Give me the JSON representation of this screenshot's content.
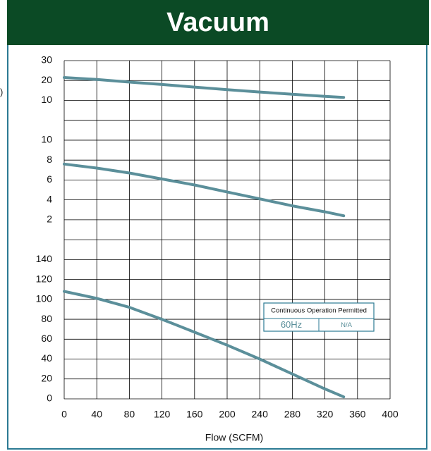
{
  "header": {
    "title": "Vacuum"
  },
  "clipped_label": ")",
  "colors": {
    "header_bg": "#0b4a25",
    "curve": "#5b8f9a",
    "frame": "#2b7a93",
    "grid": "#000000"
  },
  "info_box": {
    "title": "Continuous  Operation Permitted",
    "freq": "60Hz",
    "value": "N/A"
  },
  "chart_data": {
    "type": "line",
    "xlabel": "Flow (SCFM)",
    "xlim": [
      0,
      400
    ],
    "x_ticks": [
      0,
      40,
      80,
      120,
      160,
      200,
      240,
      280,
      320,
      360,
      400
    ],
    "grid": true,
    "panels": [
      {
        "name": "upper",
        "ylabel": "",
        "tick_labels": [
          "30",
          "20",
          "10"
        ],
        "series": [
          {
            "x": [
              0,
              40,
              80,
              120,
              160,
              200,
              240,
              280,
              320,
              343
            ],
            "y": [
              21.5,
              20.5,
              19.2,
              18.0,
              16.7,
              15.4,
              14.2,
              13.1,
              12.0,
              11.5
            ]
          }
        ]
      },
      {
        "name": "middle",
        "ylabel": "",
        "tick_labels": [
          "10",
          "8",
          "6",
          "4",
          "2"
        ],
        "series": [
          {
            "x": [
              0,
              40,
              80,
              120,
              160,
              200,
              240,
              280,
              320,
              343
            ],
            "y": [
              7.6,
              7.2,
              6.7,
              6.1,
              5.5,
              4.8,
              4.1,
              3.4,
              2.8,
              2.4
            ]
          }
        ]
      },
      {
        "name": "lower",
        "ylabel": "",
        "tick_labels": [
          "140",
          "120",
          "100",
          "80",
          "60",
          "40",
          "20",
          "0"
        ],
        "series": [
          {
            "x": [
              0,
              40,
              80,
              120,
              160,
              200,
              240,
              280,
              320,
              343
            ],
            "y": [
              108,
              101,
              92,
              80,
              67,
              54,
              40,
              25,
              10,
              2
            ]
          }
        ]
      }
    ]
  }
}
